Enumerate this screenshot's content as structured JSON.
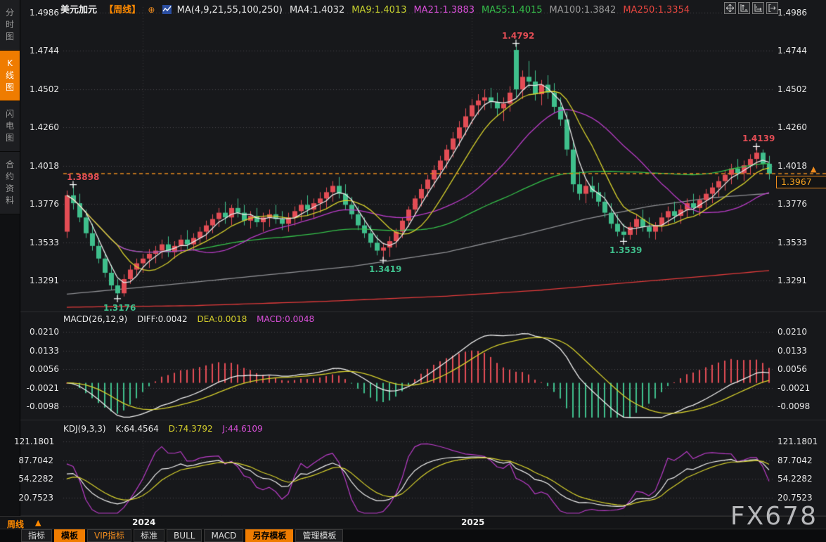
{
  "header": {
    "symbol": "美元加元",
    "period_tag": "【周线】",
    "add_icon": "⊕",
    "ma_group_label": "MA(4,9,21,55,100,250)",
    "ma_items": [
      {
        "label": "MA4:1.4032",
        "color": "#e8e8e8"
      },
      {
        "label": "MA9:1.4013",
        "color": "#c8d22e"
      },
      {
        "label": "MA21:1.3883",
        "color": "#d94fd9"
      },
      {
        "label": "MA55:1.4015",
        "color": "#35c04a"
      },
      {
        "label": "MA100:1.3842",
        "color": "#9b9b9b"
      },
      {
        "label": "MA250:1.3354",
        "color": "#e8463f"
      }
    ]
  },
  "sidebar": {
    "items": [
      {
        "label": "分时图",
        "active": false
      },
      {
        "label": "K线图",
        "active": true
      },
      {
        "label": "闪电图",
        "active": false
      },
      {
        "label": "合约资料",
        "active": false
      }
    ]
  },
  "toolbar_buttons": [
    {
      "label": "指标",
      "style": "plain"
    },
    {
      "label": "模板",
      "style": "active"
    },
    {
      "label": "VIP指标",
      "style": "vip"
    },
    {
      "label": "标准",
      "style": "plain"
    },
    {
      "label": "BULL",
      "style": "plain"
    },
    {
      "label": "MACD",
      "style": "plain"
    },
    {
      "label": "另存模板",
      "style": "active"
    },
    {
      "label": "管理模板",
      "style": "plain"
    }
  ],
  "timeline": {
    "period": "周线",
    "arrow": "▲"
  },
  "watermark": "FX678",
  "chart_data": {
    "type": "candlestick",
    "title": "美元加元 周线 (USD/CAD weekly)",
    "colors": {
      "up": "#e34d55",
      "down": "#3fbf8c",
      "accent": "#f08c1e",
      "ma4": "#e8e8e8",
      "ma9": "#d6d02c",
      "ma21": "#ba3cc8",
      "ma55": "#35c04a",
      "ma100": "#8f9094",
      "ma250": "#e23b3b"
    },
    "y_tick_labels": [
      "1.4986",
      "1.4744",
      "1.4502",
      "1.4260",
      "1.4018",
      "1.3776",
      "1.3533",
      "1.3291"
    ],
    "current_price_label": "1.3967",
    "price_marker": "▲",
    "years": [
      {
        "label": "2024",
        "week": 12
      },
      {
        "label": "2025",
        "week": 64
      }
    ],
    "annotations": [
      {
        "text": "1.3898",
        "week": 1,
        "price": 1.3898,
        "type": "high",
        "color": "#e34d55"
      },
      {
        "text": "1.3176",
        "week": 8,
        "price": 1.3176,
        "type": "low",
        "color": "#3fbf8c"
      },
      {
        "text": "1.3419",
        "week": 50,
        "price": 1.3419,
        "type": "low",
        "color": "#3fbf8c"
      },
      {
        "text": "1.4792",
        "week": 71,
        "price": 1.4792,
        "type": "high",
        "color": "#e34d55"
      },
      {
        "text": "1.3539",
        "week": 88,
        "price": 1.3539,
        "type": "low",
        "color": "#3fbf8c"
      },
      {
        "text": "1.4139",
        "week": 109,
        "price": 1.4139,
        "type": "high",
        "color": "#e34d55"
      }
    ],
    "candles": [
      [
        1.36,
        1.386,
        1.356,
        1.383
      ],
      [
        1.383,
        1.3898,
        1.374,
        1.378
      ],
      [
        1.378,
        1.384,
        1.366,
        1.369
      ],
      [
        1.369,
        1.374,
        1.356,
        1.359
      ],
      [
        1.359,
        1.365,
        1.348,
        1.351
      ],
      [
        1.351,
        1.356,
        1.34,
        1.343
      ],
      [
        1.343,
        1.347,
        1.331,
        1.334
      ],
      [
        1.334,
        1.339,
        1.323,
        1.326
      ],
      [
        1.326,
        1.33,
        1.3176,
        1.321
      ],
      [
        1.321,
        1.333,
        1.319,
        1.33
      ],
      [
        1.33,
        1.339,
        1.327,
        1.336
      ],
      [
        1.336,
        1.343,
        1.332,
        1.34
      ],
      [
        1.34,
        1.346,
        1.334,
        1.343
      ],
      [
        1.343,
        1.349,
        1.337,
        1.346
      ],
      [
        1.346,
        1.351,
        1.34,
        1.348
      ],
      [
        1.348,
        1.355,
        1.343,
        1.352
      ],
      [
        1.352,
        1.357,
        1.344,
        1.347
      ],
      [
        1.347,
        1.354,
        1.343,
        1.351
      ],
      [
        1.351,
        1.358,
        1.346,
        1.355
      ],
      [
        1.355,
        1.361,
        1.349,
        1.352
      ],
      [
        1.352,
        1.359,
        1.348,
        1.356
      ],
      [
        1.356,
        1.363,
        1.352,
        1.36
      ],
      [
        1.36,
        1.367,
        1.355,
        1.364
      ],
      [
        1.364,
        1.371,
        1.359,
        1.368
      ],
      [
        1.368,
        1.375,
        1.363,
        1.372
      ],
      [
        1.372,
        1.379,
        1.365,
        1.369
      ],
      [
        1.369,
        1.377,
        1.364,
        1.375
      ],
      [
        1.375,
        1.381,
        1.369,
        1.372
      ],
      [
        1.372,
        1.377,
        1.364,
        1.367
      ],
      [
        1.367,
        1.373,
        1.362,
        1.37
      ],
      [
        1.37,
        1.375,
        1.363,
        1.366
      ],
      [
        1.366,
        1.372,
        1.36,
        1.369
      ],
      [
        1.369,
        1.374,
        1.363,
        1.371
      ],
      [
        1.371,
        1.377,
        1.365,
        1.368
      ],
      [
        1.368,
        1.373,
        1.361,
        1.365
      ],
      [
        1.365,
        1.372,
        1.36,
        1.369
      ],
      [
        1.369,
        1.376,
        1.364,
        1.373
      ],
      [
        1.373,
        1.38,
        1.367,
        1.377
      ],
      [
        1.377,
        1.383,
        1.37,
        1.374
      ],
      [
        1.374,
        1.381,
        1.368,
        1.378
      ],
      [
        1.378,
        1.385,
        1.372,
        1.381
      ],
      [
        1.381,
        1.388,
        1.375,
        1.385
      ],
      [
        1.385,
        1.392,
        1.379,
        1.389
      ],
      [
        1.389,
        1.3946,
        1.381,
        1.384
      ],
      [
        1.384,
        1.39,
        1.374,
        1.377
      ],
      [
        1.377,
        1.382,
        1.368,
        1.371
      ],
      [
        1.371,
        1.376,
        1.361,
        1.364
      ],
      [
        1.364,
        1.369,
        1.356,
        1.359
      ],
      [
        1.359,
        1.364,
        1.35,
        1.353
      ],
      [
        1.353,
        1.358,
        1.345,
        1.348
      ],
      [
        1.348,
        1.353,
        1.3419,
        1.35
      ],
      [
        1.35,
        1.357,
        1.344,
        1.354
      ],
      [
        1.354,
        1.362,
        1.35,
        1.36
      ],
      [
        1.36,
        1.369,
        1.356,
        1.367
      ],
      [
        1.367,
        1.376,
        1.363,
        1.374
      ],
      [
        1.374,
        1.383,
        1.37,
        1.381
      ],
      [
        1.381,
        1.39,
        1.376,
        1.387
      ],
      [
        1.387,
        1.396,
        1.382,
        1.393
      ],
      [
        1.393,
        1.402,
        1.388,
        1.399
      ],
      [
        1.399,
        1.408,
        1.394,
        1.405
      ],
      [
        1.405,
        1.415,
        1.4,
        1.412
      ],
      [
        1.412,
        1.423,
        1.407,
        1.419
      ],
      [
        1.419,
        1.43,
        1.414,
        1.426
      ],
      [
        1.426,
        1.438,
        1.421,
        1.433
      ],
      [
        1.433,
        1.444,
        1.428,
        1.44
      ],
      [
        1.44,
        1.447,
        1.434,
        1.443
      ],
      [
        1.443,
        1.45,
        1.437,
        1.445
      ],
      [
        1.445,
        1.451,
        1.438,
        1.442
      ],
      [
        1.442,
        1.448,
        1.433,
        1.438
      ],
      [
        1.438,
        1.445,
        1.43,
        1.441
      ],
      [
        1.441,
        1.452,
        1.436,
        1.448
      ],
      [
        1.475,
        1.4792,
        1.445,
        1.45
      ],
      [
        1.45,
        1.462,
        1.444,
        1.458
      ],
      [
        1.458,
        1.468,
        1.451,
        1.455
      ],
      [
        1.455,
        1.462,
        1.443,
        1.447
      ],
      [
        1.447,
        1.456,
        1.44,
        1.453
      ],
      [
        1.453,
        1.459,
        1.444,
        1.448
      ],
      [
        1.448,
        1.454,
        1.435,
        1.439
      ],
      [
        1.439,
        1.445,
        1.427,
        1.431
      ],
      [
        1.431,
        1.436,
        1.408,
        1.412
      ],
      [
        1.412,
        1.418,
        1.385,
        1.39
      ],
      [
        1.39,
        1.398,
        1.38,
        1.384
      ],
      [
        1.384,
        1.393,
        1.378,
        1.389
      ],
      [
        1.389,
        1.395,
        1.381,
        1.385
      ],
      [
        1.385,
        1.391,
        1.376,
        1.379
      ],
      [
        1.379,
        1.385,
        1.369,
        1.372
      ],
      [
        1.372,
        1.378,
        1.362,
        1.365
      ],
      [
        1.365,
        1.371,
        1.357,
        1.36
      ],
      [
        1.36,
        1.365,
        1.3539,
        1.358
      ],
      [
        1.358,
        1.366,
        1.355,
        1.363
      ],
      [
        1.363,
        1.371,
        1.358,
        1.368
      ],
      [
        1.368,
        1.374,
        1.36,
        1.363
      ],
      [
        1.363,
        1.369,
        1.356,
        1.36
      ],
      [
        1.36,
        1.366,
        1.355,
        1.364
      ],
      [
        1.364,
        1.372,
        1.36,
        1.369
      ],
      [
        1.369,
        1.376,
        1.364,
        1.373
      ],
      [
        1.373,
        1.379,
        1.366,
        1.37
      ],
      [
        1.37,
        1.377,
        1.365,
        1.374
      ],
      [
        1.374,
        1.381,
        1.369,
        1.378
      ],
      [
        1.378,
        1.384,
        1.371,
        1.375
      ],
      [
        1.375,
        1.383,
        1.37,
        1.38
      ],
      [
        1.38,
        1.387,
        1.374,
        1.384
      ],
      [
        1.384,
        1.391,
        1.378,
        1.388
      ],
      [
        1.388,
        1.395,
        1.382,
        1.392
      ],
      [
        1.392,
        1.399,
        1.386,
        1.396
      ],
      [
        1.396,
        1.403,
        1.39,
        1.4
      ],
      [
        1.4,
        1.406,
        1.393,
        1.397
      ],
      [
        1.397,
        1.405,
        1.392,
        1.402
      ],
      [
        1.402,
        1.409,
        1.396,
        1.406
      ],
      [
        1.406,
        1.4139,
        1.4,
        1.41
      ],
      [
        1.41,
        1.412,
        1.399,
        1.403
      ],
      [
        1.403,
        1.408,
        1.393,
        1.3967
      ]
    ],
    "ma100_waypoints": [
      [
        0,
        1.3205
      ],
      [
        15,
        1.326
      ],
      [
        30,
        1.332
      ],
      [
        45,
        1.338
      ],
      [
        60,
        1.347
      ],
      [
        72,
        1.358
      ],
      [
        82,
        1.368
      ],
      [
        92,
        1.376
      ],
      [
        102,
        1.3815
      ],
      [
        111,
        1.3842
      ]
    ],
    "ma250_waypoints": [
      [
        0,
        1.3122
      ],
      [
        20,
        1.3132
      ],
      [
        40,
        1.3158
      ],
      [
        60,
        1.3192
      ],
      [
        75,
        1.323
      ],
      [
        90,
        1.3282
      ],
      [
        102,
        1.3322
      ],
      [
        111,
        1.3354
      ]
    ],
    "macd": {
      "label": "MACD(26,12,9)",
      "diff_label": "DIFF:0.0042",
      "dea_label": "DEA:0.0018",
      "macd_label": "MACD:0.0048",
      "tick_labels": [
        "0.0210",
        "0.0133",
        "0.0056",
        "-0.0021",
        "-0.0098"
      ]
    },
    "kdj": {
      "label": "KDJ(9,3,3)",
      "k_label": "K:64.4564",
      "d_label": "D:74.3792",
      "j_label": "J:44.6109",
      "tick_labels": [
        "121.1801",
        "87.7042",
        "54.2282",
        "20.7523"
      ]
    }
  }
}
